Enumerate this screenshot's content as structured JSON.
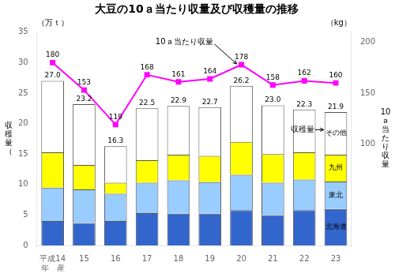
{
  "chart_data": {
    "type": "bar",
    "stacked": true,
    "title": "大豆の10ａ当たり収量及び収穫量の推移",
    "categories": [
      "平成14\n年　産",
      "15",
      "16",
      "17",
      "18",
      "19",
      "20",
      "21",
      "22",
      "23"
    ],
    "series": [
      {
        "name": "北海道",
        "color": "#3366cc",
        "values": [
          4.0,
          3.7,
          4.0,
          5.3,
          5.2,
          5.2,
          5.8,
          5.0,
          5.8,
          6.0
        ]
      },
      {
        "name": "東北",
        "color": "#99ccff",
        "values": [
          5.5,
          5.5,
          4.5,
          5.0,
          5.5,
          5.2,
          5.8,
          5.3,
          5.0,
          4.5
        ]
      },
      {
        "name": "九州",
        "color": "#ffff00",
        "values": [
          5.8,
          4.0,
          1.8,
          3.7,
          4.2,
          4.3,
          5.4,
          4.7,
          4.5,
          4.4
        ]
      },
      {
        "name": "その他",
        "color": "#ffffff",
        "values": [
          11.7,
          10.0,
          6.0,
          8.5,
          8.0,
          8.0,
          9.2,
          8.0,
          7.0,
          7.0
        ]
      },
      {
        "name": "10ａ当たり収量",
        "type": "line",
        "axis": "y2",
        "color": "#ff00ff",
        "marker": "square",
        "data_labels": true,
        "values": [
          180,
          153,
          119,
          168,
          161,
          164,
          178,
          158,
          162,
          160
        ]
      }
    ],
    "totals": {
      "values": [
        27.0,
        23.2,
        16.3,
        22.5,
        22.9,
        22.7,
        26.2,
        23.0,
        22.3,
        21.9
      ],
      "value_labels": [
        "27.0",
        "23.2",
        "16.3",
        "22.5",
        "22.9",
        "22.7",
        "26.2",
        "23.0",
        "22.3",
        "21.9"
      ]
    },
    "ylabel": "収\n穫\n量\n（",
    "y2label": "10\nａ\n当\nた\nり\n収\n量",
    "y_unit": "（万ｔ）",
    "y2_unit": "（kg）",
    "ylim": [
      0,
      35
    ],
    "yticks": [
      0,
      5,
      10,
      15,
      20,
      25,
      30,
      35
    ],
    "y2lim": [
      0,
      210
    ],
    "y2ticks": [
      100,
      150,
      200
    ],
    "grid": false,
    "annotations": [
      {
        "text": "10ａ当たり収量",
        "x": "20",
        "y": 178,
        "axis": "y2"
      },
      {
        "text": "収穫量",
        "x": "23",
        "y": 19
      }
    ]
  }
}
